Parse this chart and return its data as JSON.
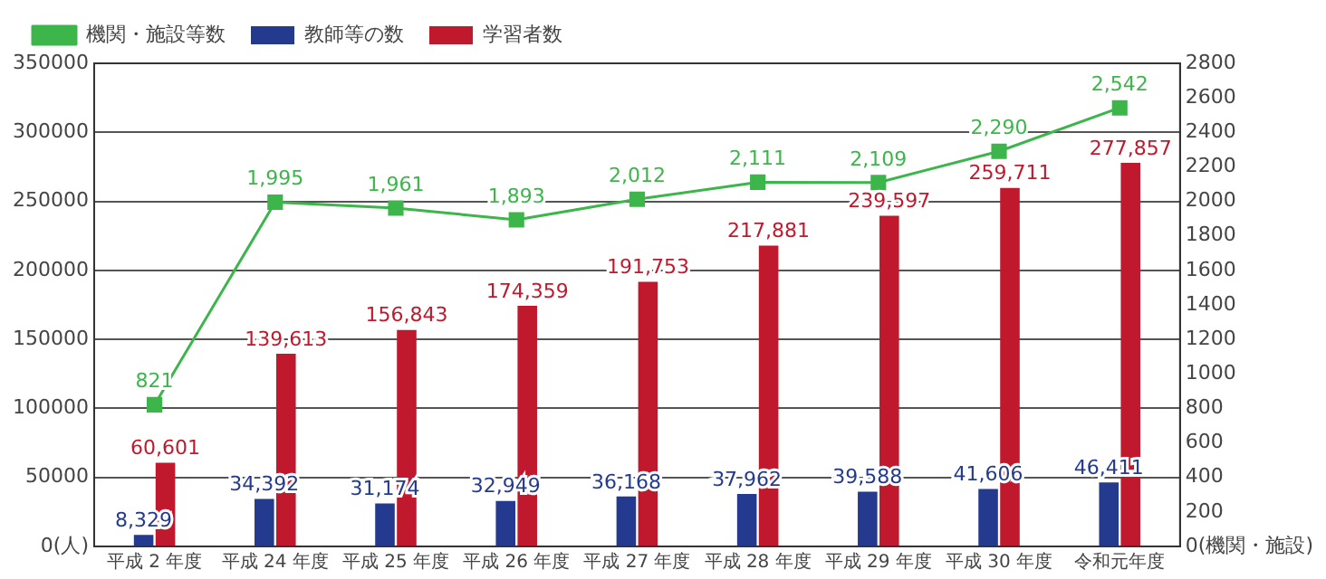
{
  "chart_data": {
    "type": "bar",
    "categories": [
      "平成 2 年度",
      "平成 24 年度",
      "平成 25 年度",
      "平成 26 年度",
      "平成 27 年度",
      "平成 28 年度",
      "平成 29 年度",
      "平成 30 年度",
      "令和元年度"
    ],
    "series": [
      {
        "name": "機関・施設等数",
        "type": "line",
        "axis": "y2",
        "color": "#3cb54a",
        "marker": "square",
        "values": [
          821,
          1995,
          1961,
          1893,
          2012,
          2111,
          2109,
          2290,
          2542
        ],
        "value_labels": [
          "821",
          "1,995",
          "1,961",
          "1,893",
          "2,012",
          "2,111",
          "2,109",
          "2,290",
          "2,542"
        ]
      },
      {
        "name": "教師等の数",
        "color": "#233a8f",
        "values": [
          8329,
          34392,
          31174,
          32949,
          36168,
          37962,
          39588,
          41606,
          46411
        ],
        "value_labels": [
          "8,329",
          "34,392",
          "31,174",
          "32,949",
          "36,168",
          "37,962",
          "39,588",
          "41,606",
          "46,411"
        ]
      },
      {
        "name": "学習者数",
        "color": "#c0192d",
        "values": [
          60601,
          139613,
          156843,
          174359,
          191753,
          217881,
          239597,
          259711,
          277857
        ],
        "value_labels": [
          "60,601",
          "139,613",
          "156,843",
          "174,359",
          "191,753",
          "217,881",
          "239,597",
          "259,711",
          "277,857"
        ]
      }
    ],
    "ylim": [
      0,
      350000
    ],
    "yticks": [
      {
        "value": 0,
        "label": "0(人)"
      },
      50000,
      100000,
      150000,
      200000,
      250000,
      300000,
      350000
    ],
    "y2lim": [
      0,
      2800
    ],
    "y2ticks": [
      {
        "value": 0,
        "label": "0(機関・施設)"
      },
      200,
      400,
      600,
      800,
      1000,
      1200,
      1400,
      1600,
      1800,
      2000,
      2200,
      2400,
      2600,
      2800
    ],
    "grid": "y",
    "legend": "top left"
  }
}
